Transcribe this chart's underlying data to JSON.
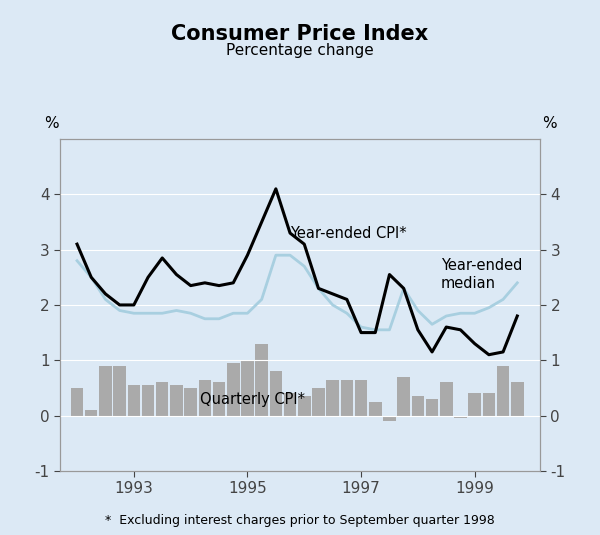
{
  "title": "Consumer Price Index",
  "subtitle": "Percentage change",
  "ylabel_left": "%",
  "ylabel_right": "%",
  "footnote": "*  Excluding interest charges prior to September quarter 1998",
  "bg_color": "#dce9f5",
  "plot_bg_color": "#dce9f5",
  "ylim": [
    -1,
    5
  ],
  "yticks": [
    -1,
    0,
    1,
    2,
    3,
    4
  ],
  "cpi_label": "Year-ended CPI*",
  "median_label": "Year-ended\nmedian",
  "bar_label": "Quarterly CPI*",
  "cpi_color": "#000000",
  "median_color": "#a8cfe0",
  "bar_color": "#aaaaaa",
  "x_values": [
    1992.0,
    1992.25,
    1992.5,
    1992.75,
    1993.0,
    1993.25,
    1993.5,
    1993.75,
    1994.0,
    1994.25,
    1994.5,
    1994.75,
    1995.0,
    1995.25,
    1995.5,
    1995.75,
    1996.0,
    1996.25,
    1996.5,
    1996.75,
    1997.0,
    1997.25,
    1997.5,
    1997.75,
    1998.0,
    1998.25,
    1998.5,
    1998.75,
    1999.0,
    1999.25,
    1999.5,
    1999.75
  ],
  "year_ended_cpi": [
    3.1,
    2.5,
    2.2,
    2.0,
    2.0,
    2.5,
    2.85,
    2.55,
    2.35,
    2.4,
    2.35,
    2.4,
    2.9,
    3.5,
    4.1,
    3.3,
    3.1,
    2.3,
    2.2,
    2.1,
    1.5,
    1.5,
    2.55,
    2.3,
    1.55,
    1.15,
    1.6,
    1.55,
    1.3,
    1.1,
    1.15,
    1.8
  ],
  "year_ended_median": [
    2.8,
    2.5,
    2.1,
    1.9,
    1.85,
    1.85,
    1.85,
    1.9,
    1.85,
    1.75,
    1.75,
    1.85,
    1.85,
    2.1,
    2.9,
    2.9,
    2.7,
    2.3,
    2.0,
    1.85,
    1.6,
    1.55,
    1.55,
    2.3,
    1.9,
    1.65,
    1.8,
    1.85,
    1.85,
    1.95,
    2.1,
    2.4
  ],
  "quarterly_cpi": [
    0.5,
    0.1,
    0.9,
    0.9,
    0.55,
    0.55,
    0.6,
    0.55,
    0.5,
    0.65,
    0.6,
    0.95,
    1.0,
    1.3,
    0.8,
    0.4,
    0.35,
    0.5,
    0.65,
    0.65,
    0.65,
    0.25,
    -0.1,
    0.7,
    0.35,
    0.3,
    0.6,
    -0.05,
    0.4,
    0.4,
    0.9,
    0.6
  ],
  "xtick_years": [
    1993,
    1995,
    1997,
    1999
  ],
  "xtick_positions": [
    1993.0,
    1995.0,
    1997.0,
    1999.0
  ],
  "xlim": [
    1991.7,
    2000.15
  ]
}
